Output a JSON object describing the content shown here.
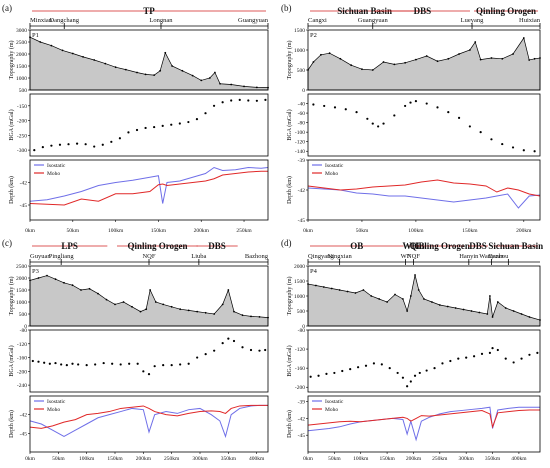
{
  "colors": {
    "topo_fill": "#c8c8c8",
    "isostatic": "#6f6fe8",
    "moho": "#e02828",
    "arrow": "#d02020",
    "text": "#111111"
  },
  "chart_data": [
    {
      "panel": "(a)",
      "profile": "P1",
      "region_labels": [
        "TP"
      ],
      "place_labels": [
        "Minxian",
        "Dangchang",
        "Longnan",
        "Guangyuan"
      ],
      "place_km": [
        0,
        40,
        153,
        278
      ],
      "xlim": [
        0,
        278
      ],
      "x_ticks": [
        0,
        50,
        100,
        150,
        200,
        250
      ],
      "x_tick_labels": [
        "0km",
        "50km",
        "100km",
        "150km",
        "200km",
        "250km"
      ],
      "xlabel": "",
      "topo": {
        "type": "area",
        "ylabel": "Topography (m)",
        "ylim": [
          500,
          3000
        ],
        "ticks": [
          500,
          1000,
          1500,
          2000,
          2500,
          3000
        ],
        "x": [
          0,
          12,
          25,
          38,
          50,
          62,
          75,
          88,
          100,
          112,
          125,
          135,
          145,
          152,
          158,
          166,
          178,
          190,
          200,
          210,
          216,
          222,
          235,
          250,
          265,
          278
        ],
        "values": [
          2700,
          2500,
          2350,
          2150,
          2020,
          1880,
          1750,
          1600,
          1450,
          1350,
          1230,
          1150,
          1120,
          1300,
          2050,
          1500,
          1300,
          1100,
          900,
          1000,
          1230,
          760,
          730,
          650,
          610,
          600
        ]
      },
      "bga": {
        "type": "scatter",
        "ylabel": "BGA (mGal)",
        "ylim": [
          -320,
          -110
        ],
        "ticks": [
          -300,
          -250,
          -200,
          -150
        ],
        "x": [
          5,
          15,
          25,
          35,
          45,
          55,
          65,
          75,
          85,
          95,
          105,
          115,
          125,
          135,
          145,
          155,
          165,
          175,
          185,
          195,
          205,
          215,
          225,
          235,
          245,
          255,
          265,
          275
        ],
        "values": [
          -300,
          -290,
          -285,
          -282,
          -280,
          -278,
          -280,
          -288,
          -282,
          -272,
          -260,
          -240,
          -232,
          -225,
          -222,
          -218,
          -214,
          -210,
          -205,
          -195,
          -175,
          -150,
          -138,
          -132,
          -130,
          -132,
          -133,
          -130
        ]
      },
      "depth": {
        "type": "line",
        "ylabel": "Depth (km)",
        "ylim": [
          -47,
          -39
        ],
        "ticks": [
          -45,
          -42
        ],
        "x": [
          0,
          20,
          40,
          60,
          80,
          100,
          120,
          140,
          150,
          155,
          160,
          175,
          190,
          205,
          215,
          225,
          240,
          255,
          270,
          278
        ],
        "series": [
          {
            "name": "Isostatic",
            "values": [
              -44.5,
              -44.3,
              -43.8,
              -43.2,
              -42.4,
              -42.0,
              -41.7,
              -41.3,
              -41.1,
              -44.8,
              -42.0,
              -41.8,
              -41.3,
              -40.8,
              -40.0,
              -40.4,
              -40.3,
              -40.0,
              -40.1,
              -40.0
            ]
          },
          {
            "name": "Moho",
            "values": [
              -44.8,
              -44.9,
              -45.0,
              -44.2,
              -44.5,
              -43.5,
              -43.5,
              -43.2,
              -42.3,
              -42.2,
              -42.4,
              -42.2,
              -42.0,
              -41.8,
              -41.5,
              -41.0,
              -40.8,
              -40.6,
              -40.5,
              -40.5
            ]
          }
        ]
      }
    },
    {
      "panel": "(b)",
      "profile": "P2",
      "region_labels": [
        "Sichuan Basin",
        "DBS",
        "Qinling Orogen"
      ],
      "place_labels": [
        "Cangxi",
        "Guangyuan",
        "Lueyang",
        "Huixian"
      ],
      "place_km": [
        0,
        60,
        152,
        215
      ],
      "xlim": [
        0,
        215
      ],
      "x_ticks": [
        0,
        50,
        100,
        150,
        200
      ],
      "x_tick_labels": [
        "0km",
        "50km",
        "100km",
        "150km",
        "200km"
      ],
      "xlabel": "",
      "topo": {
        "type": "area",
        "ylabel": "Topography (m)",
        "ylim": [
          0,
          1500
        ],
        "ticks": [
          0,
          500,
          1000,
          1500
        ],
        "x": [
          0,
          5,
          12,
          20,
          30,
          40,
          50,
          60,
          70,
          80,
          90,
          100,
          110,
          120,
          130,
          140,
          150,
          155,
          160,
          170,
          180,
          190,
          200,
          205,
          210,
          215
        ],
        "values": [
          500,
          700,
          880,
          920,
          780,
          620,
          520,
          500,
          700,
          640,
          680,
          760,
          850,
          720,
          780,
          900,
          1000,
          1200,
          760,
          800,
          780,
          900,
          1300,
          750,
          780,
          800
        ]
      },
      "bga": {
        "type": "scatter",
        "ylabel": "BGA (mGal)",
        "ylim": [
          -150,
          -20
        ],
        "ticks": [
          -140,
          -120,
          -100,
          -80,
          -60,
          -40
        ],
        "x": [
          5,
          15,
          25,
          35,
          45,
          55,
          60,
          65,
          70,
          80,
          90,
          95,
          100,
          110,
          120,
          130,
          140,
          150,
          160,
          170,
          180,
          190,
          200,
          210
        ],
        "values": [
          -42,
          -45,
          -48,
          -52,
          -58,
          -72,
          -82,
          -88,
          -82,
          -65,
          -45,
          -38,
          -35,
          -40,
          -48,
          -58,
          -70,
          -88,
          -100,
          -115,
          -125,
          -132,
          -138,
          -140
        ]
      },
      "depth": {
        "type": "line",
        "ylabel": "Depth (km)",
        "ylim": [
          -45,
          -39
        ],
        "ticks": [
          -45,
          -42,
          -39
        ],
        "x": [
          0,
          15,
          30,
          45,
          60,
          75,
          90,
          105,
          120,
          135,
          150,
          165,
          175,
          185,
          195,
          205,
          215
        ],
        "series": [
          {
            "name": "Isostatic",
            "values": [
              -41.8,
              -41.9,
              -42.0,
              -42.3,
              -42.4,
              -42.6,
              -42.6,
              -42.8,
              -43.0,
              -43.2,
              -43.0,
              -42.8,
              -42.6,
              -42.4,
              -43.8,
              -42.6,
              -42.5
            ]
          },
          {
            "name": "Moho",
            "values": [
              -41.6,
              -41.8,
              -42.0,
              -41.9,
              -41.7,
              -41.6,
              -41.5,
              -41.2,
              -41.0,
              -41.3,
              -41.4,
              -41.6,
              -42.2,
              -41.8,
              -42.0,
              -42.4,
              -42.6
            ]
          }
        ]
      }
    },
    {
      "panel": "(c)",
      "profile": "P3",
      "region_labels": [
        "LPS",
        "Qinling Orogen",
        "DBS"
      ],
      "place_labels": [
        "Guyuan",
        "Pingliang",
        "NQF",
        "Liuba",
        "Bazhong"
      ],
      "place_km": [
        0,
        55,
        210,
        298,
        420
      ],
      "xlim": [
        0,
        420
      ],
      "x_ticks": [
        0,
        50,
        100,
        150,
        200,
        250,
        300,
        350,
        400
      ],
      "x_tick_labels": [
        "0km",
        "50km",
        "100km",
        "150km",
        "200km",
        "250km",
        "300km",
        "350km",
        "400km"
      ],
      "xlabel": "",
      "topo": {
        "type": "area",
        "ylabel": "Topography (m)",
        "ylim": [
          0,
          2500
        ],
        "ticks": [
          0,
          500,
          1000,
          1500,
          2000,
          2500
        ],
        "x": [
          0,
          15,
          30,
          45,
          60,
          75,
          90,
          105,
          120,
          135,
          150,
          165,
          180,
          195,
          205,
          212,
          222,
          235,
          250,
          265,
          280,
          295,
          310,
          325,
          340,
          350,
          360,
          375,
          390,
          405,
          420
        ],
        "values": [
          1900,
          2000,
          2100,
          1950,
          1800,
          1700,
          1500,
          1550,
          1350,
          1100,
          900,
          1000,
          800,
          600,
          700,
          1500,
          1000,
          900,
          800,
          700,
          650,
          600,
          550,
          500,
          900,
          1500,
          600,
          450,
          400,
          380,
          350
        ]
      },
      "bga": {
        "type": "scatter",
        "ylabel": "BGA (mGal)",
        "ylim": [
          -260,
          -80
        ],
        "ticks": [
          -240,
          -200,
          -160,
          -120,
          -80
        ],
        "x": [
          5,
          15,
          25,
          35,
          45,
          55,
          65,
          75,
          85,
          100,
          115,
          130,
          145,
          160,
          175,
          190,
          200,
          210,
          220,
          235,
          250,
          265,
          280,
          295,
          310,
          325,
          340,
          350,
          360,
          375,
          390,
          405,
          415
        ],
        "values": [
          -170,
          -172,
          -175,
          -178,
          -176,
          -180,
          -182,
          -178,
          -180,
          -182,
          -180,
          -176,
          -178,
          -180,
          -178,
          -178,
          -200,
          -208,
          -185,
          -182,
          -182,
          -180,
          -178,
          -160,
          -150,
          -140,
          -118,
          -105,
          -112,
          -130,
          -138,
          -140,
          -138
        ]
      },
      "depth": {
        "type": "line",
        "ylabel": "Depth (km)",
        "ylim": [
          -48,
          -39
        ],
        "ticks": [
          -45,
          -42
        ],
        "x": [
          0,
          20,
          40,
          60,
          80,
          100,
          120,
          140,
          160,
          180,
          200,
          210,
          220,
          240,
          260,
          280,
          300,
          320,
          335,
          345,
          355,
          370,
          390,
          405,
          420
        ],
        "series": [
          {
            "name": "Isostatic",
            "values": [
              -43.0,
              -43.5,
              -44.5,
              -45.5,
              -44.5,
              -43.5,
              -42.5,
              -42.0,
              -41.5,
              -41.0,
              -41.2,
              -44.8,
              -42.0,
              -41.5,
              -41.8,
              -41.2,
              -41.0,
              -42.0,
              -43.0,
              -45.5,
              -42.0,
              -41.0,
              -40.6,
              -40.5,
              -40.5
            ]
          },
          {
            "name": "Moho",
            "values": [
              -44.0,
              -44.2,
              -43.8,
              -43.2,
              -42.8,
              -42.0,
              -41.8,
              -41.5,
              -41.0,
              -40.8,
              -40.6,
              -41.0,
              -41.5,
              -42.0,
              -42.2,
              -41.8,
              -41.5,
              -41.4,
              -41.5,
              -41.8,
              -41.0,
              -40.6,
              -40.5,
              -40.5,
              -40.5
            ]
          }
        ]
      }
    },
    {
      "panel": "(d)",
      "profile": "P4",
      "region_labels": [
        "OB",
        "WHB",
        "Qinling Orogen",
        "DBS",
        "Sichuan Basin"
      ],
      "place_labels": [
        "Qingyang",
        "Ningxian",
        "WF",
        "NQF",
        "Hanyin",
        "Wanyuan",
        "Dazhou"
      ],
      "place_km": [
        0,
        60,
        185,
        200,
        305,
        348,
        380
      ],
      "xlim": [
        0,
        440
      ],
      "x_ticks": [
        0,
        50,
        100,
        150,
        200,
        250,
        300,
        350,
        400
      ],
      "x_tick_labels": [
        "0km",
        "50km",
        "100km",
        "150km",
        "200km",
        "250km",
        "300km",
        "350km",
        "400km"
      ],
      "xlabel": "",
      "topo": {
        "type": "area",
        "ylabel": "Topography (m)",
        "ylim": [
          0,
          2000
        ],
        "ticks": [
          0,
          500,
          1000,
          1500,
          2000
        ],
        "x": [
          0,
          15,
          30,
          45,
          60,
          75,
          90,
          105,
          120,
          135,
          150,
          165,
          180,
          188,
          195,
          203,
          210,
          220,
          235,
          250,
          265,
          280,
          295,
          310,
          325,
          340,
          345,
          350,
          360,
          375,
          390,
          405,
          420,
          440
        ],
        "values": [
          1400,
          1350,
          1300,
          1250,
          1200,
          1150,
          1100,
          1200,
          1000,
          900,
          800,
          1050,
          900,
          500,
          1000,
          1700,
          1200,
          900,
          800,
          700,
          650,
          600,
          550,
          500,
          450,
          400,
          1000,
          300,
          800,
          600,
          500,
          400,
          300,
          200
        ]
      },
      "bga": {
        "type": "scatter",
        "ylabel": "BGA (mGal)",
        "ylim": [
          -210,
          -80
        ],
        "ticks": [
          -200,
          -160,
          -120,
          -80
        ],
        "x": [
          5,
          20,
          35,
          50,
          65,
          80,
          95,
          110,
          125,
          140,
          155,
          170,
          180,
          188,
          195,
          203,
          212,
          225,
          240,
          255,
          270,
          285,
          300,
          315,
          330,
          345,
          350,
          360,
          375,
          390,
          405,
          420,
          435
        ],
        "values": [
          -178,
          -176,
          -172,
          -170,
          -166,
          -162,
          -158,
          -155,
          -150,
          -152,
          -160,
          -170,
          -180,
          -198,
          -188,
          -176,
          -170,
          -165,
          -160,
          -150,
          -145,
          -140,
          -138,
          -135,
          -130,
          -128,
          -118,
          -122,
          -140,
          -148,
          -140,
          -132,
          -128
        ]
      },
      "depth": {
        "type": "line",
        "ylabel": "Depth (km)",
        "ylim": [
          -48,
          -38
        ],
        "ticks": [
          -45,
          -42,
          -39
        ],
        "x": [
          0,
          20,
          40,
          60,
          80,
          100,
          120,
          140,
          160,
          180,
          188,
          195,
          205,
          215,
          230,
          250,
          270,
          290,
          310,
          330,
          345,
          350,
          360,
          380,
          400,
          420,
          440
        ],
        "series": [
          {
            "name": "Isostatic",
            "values": [
              -44.2,
              -44.0,
              -43.8,
              -43.5,
              -43.0,
              -42.6,
              -42.4,
              -42.2,
              -42.0,
              -42.2,
              -44.8,
              -42.5,
              -45.8,
              -42.5,
              -41.8,
              -41.2,
              -40.8,
              -40.6,
              -40.4,
              -40.2,
              -40.0,
              -43.8,
              -40.5,
              -40.2,
              -40.0,
              -40.0,
              -40.0
            ]
          },
          {
            "name": "Moho",
            "values": [
              -43.2,
              -43.0,
              -42.8,
              -42.6,
              -42.5,
              -42.6,
              -42.4,
              -42.2,
              -42.0,
              -41.8,
              -42.0,
              -42.5,
              -42.0,
              -41.5,
              -41.6,
              -41.4,
              -41.2,
              -41.0,
              -40.8,
              -40.6,
              -41.2,
              -43.5,
              -41.0,
              -40.8,
              -40.6,
              -40.5,
              -40.5
            ]
          }
        ]
      }
    }
  ]
}
